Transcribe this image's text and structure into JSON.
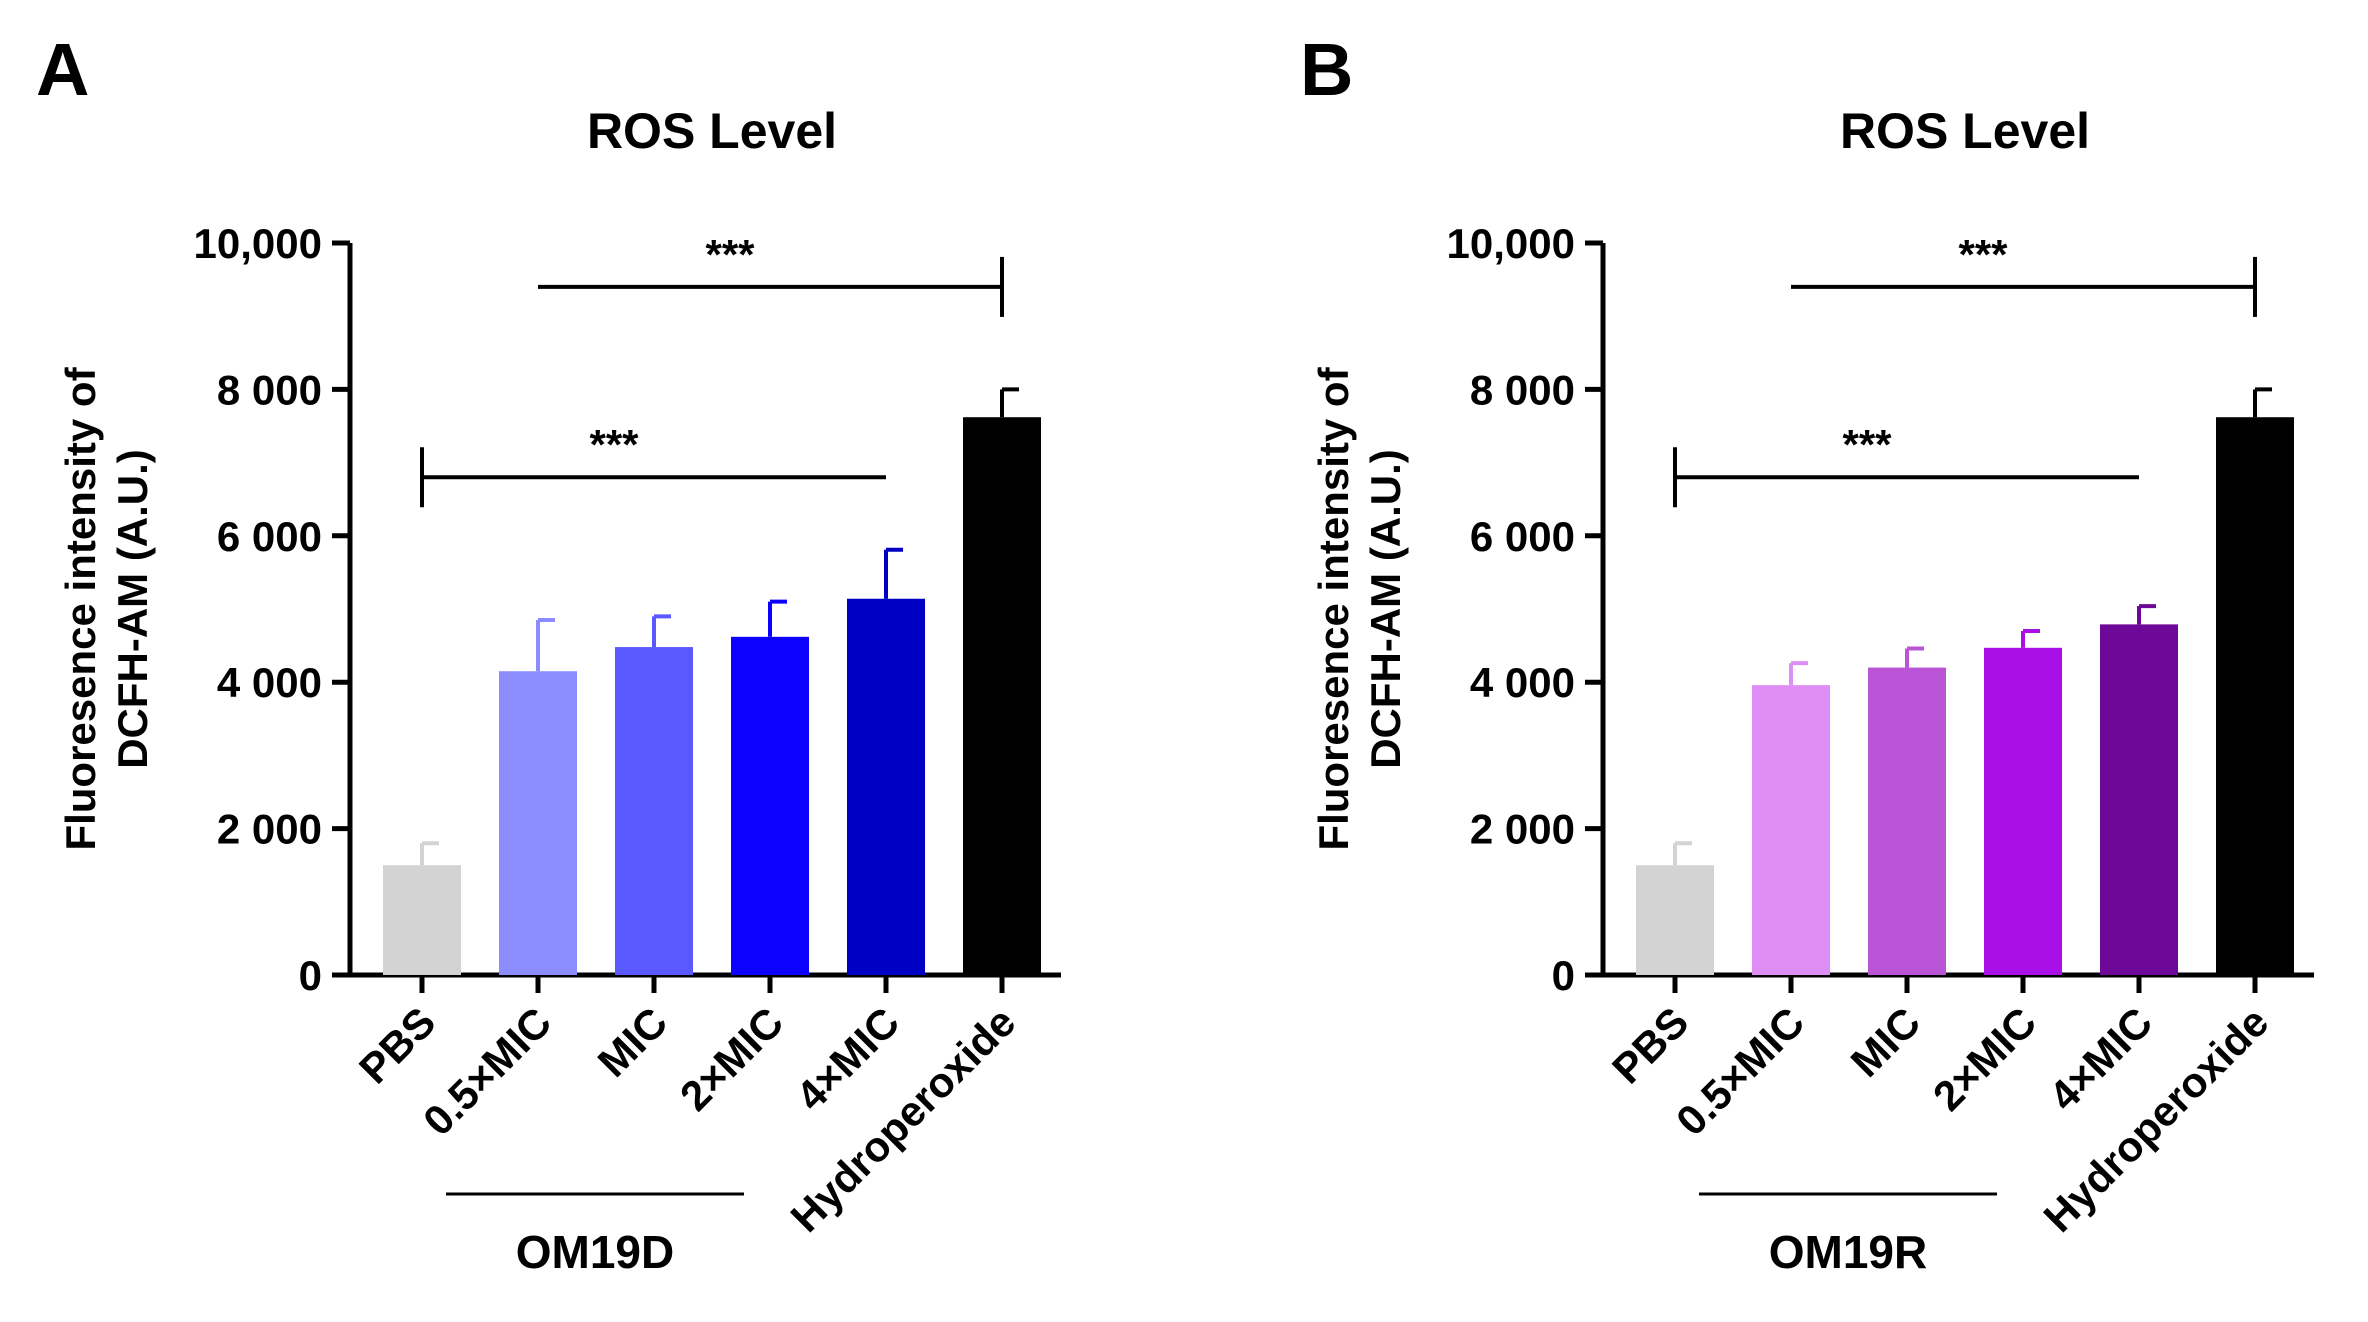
{
  "chart_data": [
    {
      "type": "bar",
      "panel": "A",
      "title": "ROS Level",
      "ylabel_line1": "Fluoresence intensity of",
      "ylabel_line2": "DCFH-AM (A.U.)",
      "ylim": [
        0,
        10000
      ],
      "yticks": [
        0,
        2000,
        4000,
        6000,
        8000,
        10000
      ],
      "ytick_labels": [
        "0",
        "2 000",
        "4 000",
        "6 000",
        "8 000",
        "10,000"
      ],
      "categories": [
        "PBS",
        "0.5×MIC",
        "MIC",
        "2×MIC",
        "4×MIC",
        "Hydroperoxide"
      ],
      "values": [
        1500,
        4150,
        4480,
        4620,
        5140,
        7620
      ],
      "errors": [
        300,
        700,
        420,
        480,
        670,
        380
      ],
      "colors": [
        "#d3d3d3",
        "#8c8cff",
        "#5959ff",
        "#0c00ff",
        "#0000c4",
        "#000000"
      ],
      "group_label": "OM19D",
      "group_span": [
        1,
        4
      ],
      "significance": [
        {
          "from": 0,
          "to": 4,
          "y": 6800,
          "label": "***"
        },
        {
          "from": 1,
          "to": 5,
          "y": 9400,
          "label": "***"
        }
      ]
    },
    {
      "type": "bar",
      "panel": "B",
      "title": "ROS Level",
      "ylabel_line1": "Fluoresence intensity of",
      "ylabel_line2": "DCFH-AM (A.U.)",
      "ylim": [
        0,
        10000
      ],
      "yticks": [
        0,
        2000,
        4000,
        6000,
        8000,
        10000
      ],
      "ytick_labels": [
        "0",
        "2 000",
        "4 000",
        "6 000",
        "8 000",
        "10,000"
      ],
      "categories": [
        "PBS",
        "0.5×MIC",
        "MIC",
        "2×MIC",
        "4×MIC",
        "Hydroperoxide"
      ],
      "values": [
        1500,
        3960,
        4200,
        4470,
        4790,
        7620
      ],
      "errors": [
        300,
        300,
        260,
        230,
        250,
        380
      ],
      "colors": [
        "#d3d3d3",
        "#df8ef6",
        "#b955d6",
        "#a90fe6",
        "#6e0898",
        "#000000"
      ],
      "group_label": "OM19R",
      "group_span": [
        1,
        4
      ],
      "significance": [
        {
          "from": 0,
          "to": 4,
          "y": 6800,
          "label": "***"
        },
        {
          "from": 1,
          "to": 5,
          "y": 9400,
          "label": "***"
        }
      ]
    }
  ]
}
